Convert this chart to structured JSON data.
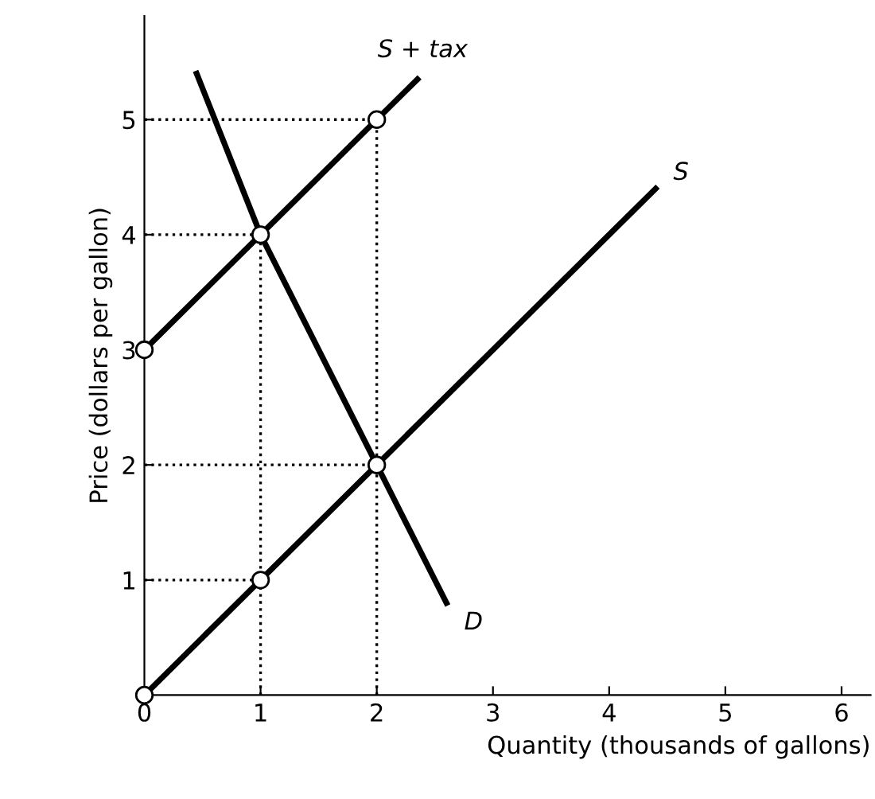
{
  "chart_data": {
    "type": "line",
    "xlabel": "Quantity (thousands of gallons)",
    "ylabel": "Price (dollars per gallon)",
    "xlim": [
      0,
      6.25
    ],
    "ylim": [
      0,
      5.9
    ],
    "xticks": [
      0,
      1,
      2,
      3,
      4,
      5,
      6
    ],
    "yticks": [
      1,
      2,
      3,
      4,
      5
    ],
    "grid": false,
    "legend": false,
    "ref_lines": [
      {
        "axis": "y",
        "value": 5,
        "color": "#000000",
        "line_style": "dotted"
      },
      {
        "axis": "y",
        "value": 4,
        "color": "#000000",
        "line_style": "dotted"
      },
      {
        "axis": "y",
        "value": 2,
        "color": "#000000",
        "line_style": "dotted"
      },
      {
        "axis": "y",
        "value": 1,
        "color": "#000000",
        "line_style": "dotted"
      },
      {
        "axis": "x",
        "value": 1,
        "color": "#000000",
        "line_style": "dotted"
      },
      {
        "axis": "x",
        "value": 2,
        "color": "#000000",
        "line_style": "dotted"
      }
    ],
    "series": [
      {
        "name": "S + tax",
        "x": [
          0,
          2.35
        ],
        "values": [
          3,
          5.35
        ],
        "color": "#000000",
        "line_style": "solid",
        "marker": "none"
      },
      {
        "name": "S",
        "x": [
          0,
          4.4
        ],
        "values": [
          0,
          4.4
        ],
        "color": "#000000",
        "line_style": "solid",
        "marker": "none"
      },
      {
        "name": "D",
        "x": [
          0.45,
          1,
          2,
          2.6
        ],
        "values": [
          5.4,
          4,
          2,
          0.8
        ],
        "color": "#000000",
        "line_style": "solid",
        "marker": "none"
      },
      {
        "type": "scatter",
        "x": [
          0,
          1,
          2,
          1,
          2,
          0
        ],
        "values": [
          0,
          1,
          2,
          4,
          5,
          3
        ],
        "color": "#000000",
        "marker": "circle"
      }
    ]
  }
}
